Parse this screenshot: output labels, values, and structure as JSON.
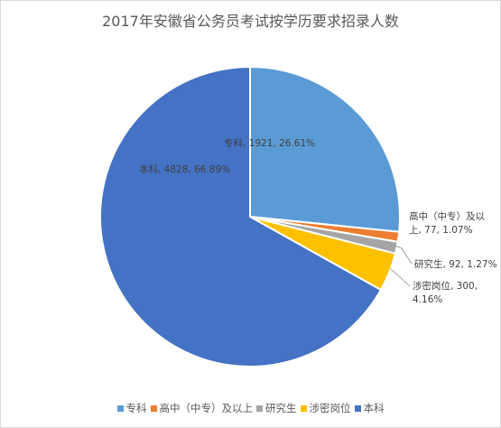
{
  "chart_data": {
    "type": "pie",
    "title": "2017年安徽省公务员考试按学历要求招录人数",
    "slices": [
      {
        "name": "专科",
        "value": 1921,
        "percent": "26.61%",
        "color": "#5B9BD5",
        "label_lines": [
          "专科, 1921, 26.61%"
        ]
      },
      {
        "name": "高中（中专）及以上",
        "value": 77,
        "percent": "1.07%",
        "color": "#ED7D31",
        "label_lines": [
          "高中（中专）及以",
          "上, 77, 1.07%"
        ]
      },
      {
        "name": "研究生",
        "value": 92,
        "percent": "1.27%",
        "color": "#A5A5A5",
        "label_lines": [
          "研究生, 92, 1.27%"
        ]
      },
      {
        "name": "涉密岗位",
        "value": 300,
        "percent": "4.16%",
        "color": "#FFC000",
        "label_lines": [
          "涉密岗位, 300,",
          "4.16%"
        ]
      },
      {
        "name": "本科",
        "value": 4828,
        "percent": "66.89%",
        "color": "#4472C4",
        "label_lines": [
          "本科, 4828, 66.89%"
        ]
      }
    ],
    "legend_position": "bottom"
  }
}
